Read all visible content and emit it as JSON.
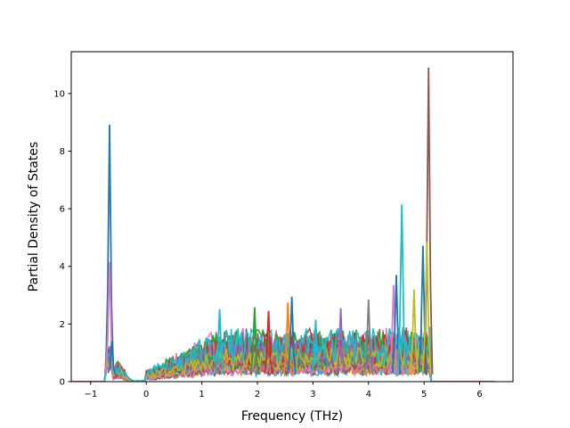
{
  "chart_data": {
    "type": "line",
    "title": "",
    "xlabel": "Frequency (THz)",
    "ylabel": "Partial Density of States",
    "xlim": [
      -1.35,
      6.6
    ],
    "ylim": [
      0,
      11.45
    ],
    "xticks": [
      -1,
      0,
      1,
      2,
      3,
      4,
      5,
      6
    ],
    "xtick_labels": [
      "−1",
      "0",
      "1",
      "2",
      "3",
      "4",
      "5",
      "6"
    ],
    "yticks": [
      0,
      2,
      4,
      6,
      8,
      10
    ],
    "ytick_labels": [
      "0",
      "2",
      "4",
      "6",
      "8",
      "10"
    ],
    "grid": false,
    "legend": "none",
    "series_count_note_visible": false,
    "colors": [
      "#1f77b4",
      "#ff7f0e",
      "#2ca02c",
      "#d62728",
      "#9467bd",
      "#8c564b",
      "#e377c2",
      "#7f7f7f",
      "#bcbd22",
      "#17becf"
    ],
    "peaks": [
      {
        "x": -0.66,
        "y": 8.92,
        "color": "#1f77b4"
      },
      {
        "x": -0.66,
        "y": 4.15,
        "color": "#e377c2"
      },
      {
        "x": -0.62,
        "y": 1.4,
        "color": "#1f77b4"
      },
      {
        "x": 1.32,
        "y": 2.52,
        "color": "#17becf"
      },
      {
        "x": 1.95,
        "y": 2.58,
        "color": "#2ca02c"
      },
      {
        "x": 2.2,
        "y": 2.45,
        "color": "#d62728"
      },
      {
        "x": 2.55,
        "y": 2.75,
        "color": "#ff7f0e"
      },
      {
        "x": 2.62,
        "y": 2.95,
        "color": "#1f77b4"
      },
      {
        "x": 3.05,
        "y": 2.15,
        "color": "#17becf"
      },
      {
        "x": 3.5,
        "y": 2.55,
        "color": "#9467bd"
      },
      {
        "x": 4.0,
        "y": 2.85,
        "color": "#7f7f7f"
      },
      {
        "x": 4.45,
        "y": 3.35,
        "color": "#e377c2"
      },
      {
        "x": 4.5,
        "y": 3.7,
        "color": "#1f77b4"
      },
      {
        "x": 4.6,
        "y": 6.15,
        "color": "#17becf"
      },
      {
        "x": 4.82,
        "y": 3.2,
        "color": "#bcbd22"
      },
      {
        "x": 4.98,
        "y": 4.72,
        "color": "#1f77b4"
      },
      {
        "x": 5.08,
        "y": 10.9,
        "color": "#8c564b"
      },
      {
        "x": 5.05,
        "y": 4.85,
        "color": "#bcbd22"
      }
    ]
  }
}
